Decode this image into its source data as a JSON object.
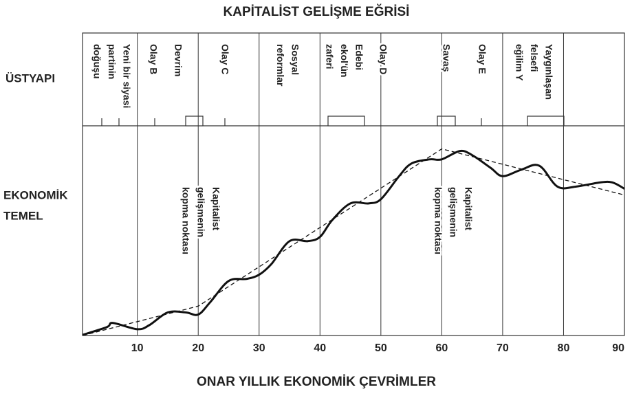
{
  "chart_data": {
    "type": "line",
    "title": "KAPİTALİST GELİŞME EĞRİSİ",
    "xlabel": "ONAR YILLIK EKONOMİK ÇEVRİMLER",
    "sections": [
      "ÜSTYAPI",
      "EKONOMİK",
      "TEMEL"
    ],
    "xlim": [
      1,
      90
    ],
    "ylim": [
      0,
      100
    ],
    "xticks": [
      10,
      20,
      30,
      40,
      50,
      60,
      70,
      80,
      90
    ],
    "series": [
      {
        "color": "#111",
        "x": [
          1,
          5,
          6,
          10,
          12,
          15,
          18,
          20,
          22,
          25,
          28,
          30,
          32,
          35,
          38,
          40,
          42,
          45,
          48,
          50,
          53,
          55,
          58,
          60,
          63,
          65,
          68,
          70,
          73,
          76,
          79,
          82,
          86,
          88,
          90
        ],
        "values": [
          0.3,
          4,
          6,
          3,
          5,
          11,
          11,
          10,
          16,
          26,
          27,
          29,
          34,
          45,
          45,
          47,
          55,
          63,
          63,
          65,
          76,
          82,
          84,
          84,
          88,
          86,
          80,
          76,
          79,
          81,
          71,
          71,
          73,
          73,
          70
        ]
      },
      {
        "color": "#111",
        "dashed": true,
        "x": [
          1,
          20,
          60,
          90
        ],
        "values": [
          0,
          14,
          89,
          67
        ]
      }
    ],
    "annotations": [
      [
        "Yeni bir siyasi",
        "partinin",
        "doğuşu"
      ],
      [
        "Olay B"
      ],
      [
        "Devrim"
      ],
      [
        "Olay C"
      ],
      [
        "Sosyal",
        "reformlar"
      ],
      [
        "Edebi",
        "ekol'ün",
        "zaferi"
      ],
      [
        "Olay D"
      ],
      [
        "Savaş"
      ],
      [
        "Olay E"
      ],
      [
        "Yaygınlaşan",
        "felsefi",
        "eğilim Y"
      ]
    ],
    "breakpoints": [
      [
        "Kapitalist",
        "gelişmenin",
        "kopma noktası"
      ],
      [
        "Kapitalist",
        "gelişmenin",
        "kopma noktası"
      ]
    ]
  }
}
